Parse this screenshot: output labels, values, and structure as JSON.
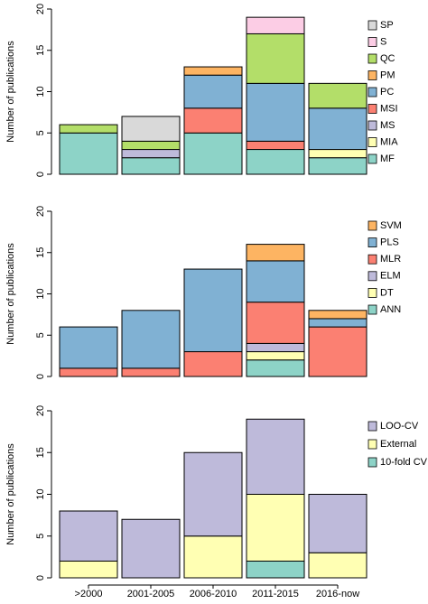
{
  "chart_data": [
    {
      "type": "bar",
      "stacked": true,
      "ylabel": "Number of publications",
      "ylim": [
        0,
        20
      ],
      "yticks": [
        0,
        5,
        10,
        15,
        20
      ],
      "series": [
        {
          "name": "MF",
          "color": "#8dd3c7",
          "values": [
            5,
            2,
            5,
            3,
            2
          ]
        },
        {
          "name": "MIA",
          "color": "#ffffb3",
          "values": [
            0,
            0,
            0,
            0,
            1
          ]
        },
        {
          "name": "MS",
          "color": "#bebada",
          "values": [
            0,
            1,
            0,
            0,
            0
          ]
        },
        {
          "name": "MSI",
          "color": "#fb8072",
          "values": [
            0,
            0,
            3,
            1,
            0
          ]
        },
        {
          "name": "PC",
          "color": "#80b1d3",
          "values": [
            0,
            0,
            4,
            7,
            5
          ]
        },
        {
          "name": "PM",
          "color": "#fdb462",
          "values": [
            0,
            0,
            1,
            0,
            0
          ]
        },
        {
          "name": "QC",
          "color": "#b3de69",
          "values": [
            1,
            1,
            0,
            6,
            3
          ]
        },
        {
          "name": "S",
          "color": "#fccde5",
          "values": [
            0,
            0,
            0,
            2,
            0
          ]
        },
        {
          "name": "SP",
          "color": "#d9d9d9",
          "values": [
            0,
            3,
            0,
            0,
            0
          ]
        }
      ]
    },
    {
      "type": "bar",
      "stacked": true,
      "ylabel": "Number of publications",
      "ylim": [
        0,
        20
      ],
      "yticks": [
        0,
        5,
        10,
        15,
        20
      ],
      "series": [
        {
          "name": "ANN",
          "color": "#8dd3c7",
          "values": [
            0,
            0,
            0,
            2,
            0
          ]
        },
        {
          "name": "DT",
          "color": "#ffffb3",
          "values": [
            0,
            0,
            0,
            1,
            0
          ]
        },
        {
          "name": "ELM",
          "color": "#bebada",
          "values": [
            0,
            0,
            0,
            1,
            0
          ]
        },
        {
          "name": "MLR",
          "color": "#fb8072",
          "values": [
            1,
            1,
            3,
            5,
            6
          ]
        },
        {
          "name": "PLS",
          "color": "#80b1d3",
          "values": [
            5,
            7,
            10,
            5,
            1
          ]
        },
        {
          "name": "SVM",
          "color": "#fdb462",
          "values": [
            0,
            0,
            0,
            2,
            1
          ]
        }
      ]
    },
    {
      "type": "bar",
      "stacked": true,
      "ylabel": "Number of publications",
      "ylim": [
        0,
        20
      ],
      "yticks": [
        0,
        5,
        10,
        15,
        20
      ],
      "categories": [
        ">2000",
        "2001-2005",
        "2006-2010",
        "2011-2015",
        "2016-now"
      ],
      "series": [
        {
          "name": "10-fold CV",
          "color": "#8dd3c7",
          "values": [
            0,
            0,
            0,
            2,
            0
          ]
        },
        {
          "name": "External",
          "color": "#ffffb3",
          "values": [
            2,
            0,
            5,
            8,
            3
          ]
        },
        {
          "name": "LOO-CV",
          "color": "#bebada",
          "values": [
            6,
            7,
            10,
            9,
            7
          ]
        }
      ]
    }
  ]
}
